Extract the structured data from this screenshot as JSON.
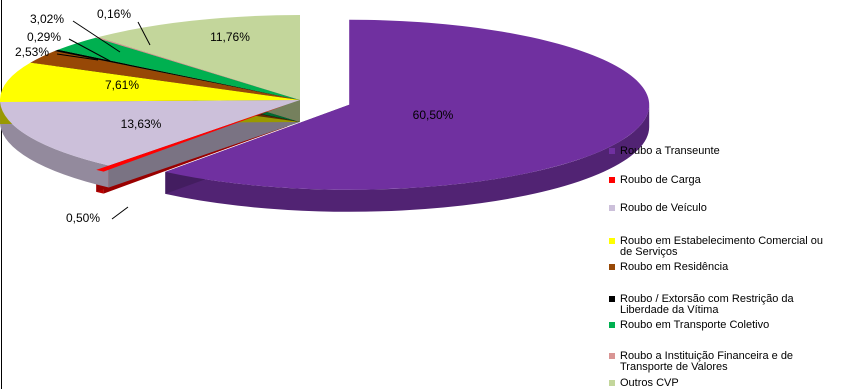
{
  "chart_data": {
    "type": "pie",
    "style": "3d-exploded",
    "legend_position": "right",
    "slices": [
      {
        "label": "Roubo a Transeunte",
        "value": 60.5,
        "value_label": "60,50%",
        "color": "#7030A0"
      },
      {
        "label": "Roubo de Carga",
        "value": 0.5,
        "value_label": "0,50%",
        "color": "#FF0000"
      },
      {
        "label": "Roubo de Veículo",
        "value": 13.63,
        "value_label": "13,63%",
        "color": "#CCC0DA"
      },
      {
        "label": "Roubo em Estabelecimento Comercial ou de Serviços",
        "value": 7.61,
        "value_label": "7,61%",
        "color": "#FFFF00"
      },
      {
        "label": "Roubo em Residência",
        "value": 2.53,
        "value_label": "2,53%",
        "color": "#974806"
      },
      {
        "label": "Roubo / Extorsão com Restrição da Liberdade da Vítima",
        "value": 0.29,
        "value_label": "0,29%",
        "color": "#000000"
      },
      {
        "label": "Roubo em Transporte Coletivo",
        "value": 3.02,
        "value_label": "3,02%",
        "color": "#00B050"
      },
      {
        "label": "Roubo a Instituição Financeira e de Transporte de Valores",
        "value": 0.16,
        "value_label": "0,16%",
        "color": "#D99594"
      },
      {
        "label": "Outros CVP",
        "value": 11.76,
        "value_label": "11,76%",
        "color": "#C3D69B"
      }
    ]
  }
}
